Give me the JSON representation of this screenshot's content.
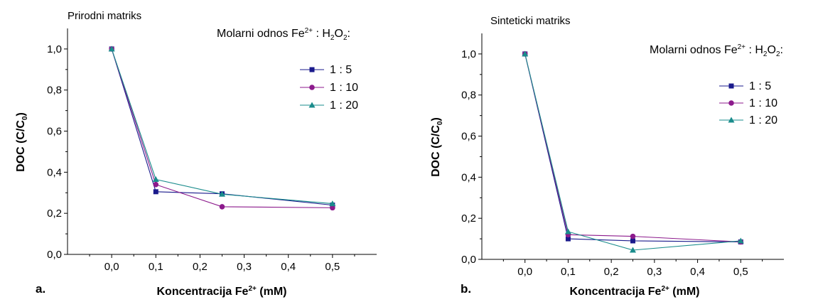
{
  "colors": {
    "1:5": "#1a1a8c",
    "1:10": "#8c1a8c",
    "1:20": "#1a8c8c"
  },
  "chart_data": [
    {
      "type": "line",
      "panel_letter": "a.",
      "title": "Prirodni matriks",
      "legend_title_parts": [
        "Molarni odnos Fe",
        "2+",
        " : H",
        "2",
        "O",
        "2",
        ":"
      ],
      "xlabel_parts": [
        "Koncentracija Fe",
        "2+",
        " (mM)"
      ],
      "ylabel_parts": [
        "DOC (C/C",
        "0",
        ")"
      ],
      "x": [
        0.0,
        0.1,
        0.25,
        0.5
      ],
      "xlim": [
        -0.1,
        0.6
      ],
      "ylim": [
        0.0,
        1.1
      ],
      "xticks": [
        0.0,
        0.1,
        0.2,
        0.3,
        0.4,
        0.5
      ],
      "xtick_labels": [
        "0,0",
        "0,1",
        "0,2",
        "0,3",
        "0,4",
        "0,5"
      ],
      "yticks": [
        0.0,
        0.2,
        0.4,
        0.6,
        0.8,
        1.0
      ],
      "ytick_labels": [
        "0,0",
        "0,2",
        "0,4",
        "0,6",
        "0,8",
        "1,0"
      ],
      "legend_position": "top-right",
      "grid": false,
      "series": [
        {
          "name": "1 : 5",
          "marker": "square",
          "color_key": "1:5",
          "values": [
            1.0,
            0.305,
            0.295,
            0.24
          ]
        },
        {
          "name": "1 : 10",
          "marker": "circle",
          "color_key": "1:10",
          "values": [
            1.0,
            0.34,
            0.232,
            0.227
          ]
        },
        {
          "name": "1 : 20",
          "marker": "triangle",
          "color_key": "1:20",
          "values": [
            1.0,
            0.365,
            0.293,
            0.247
          ]
        }
      ]
    },
    {
      "type": "line",
      "panel_letter": "b.",
      "title": "Sinteticki matriks",
      "legend_title_parts": [
        "Molarni odnos Fe",
        "2+",
        " : H",
        "2",
        "O",
        "2",
        ":"
      ],
      "xlabel_parts": [
        "Koncentracija Fe",
        "2+",
        " (mM)"
      ],
      "ylabel_parts": [
        "DOC (C/C",
        "0",
        ")"
      ],
      "x": [
        0.0,
        0.1,
        0.25,
        0.5
      ],
      "xlim": [
        -0.1,
        0.6
      ],
      "ylim": [
        0.0,
        1.1
      ],
      "xticks": [
        0.0,
        0.1,
        0.2,
        0.3,
        0.4,
        0.5
      ],
      "xtick_labels": [
        "0,0",
        "0,1",
        "0,2",
        "0,3",
        "0,4",
        "0,5"
      ],
      "yticks": [
        0.0,
        0.2,
        0.4,
        0.6,
        0.8,
        1.0
      ],
      "ytick_labels": [
        "0,0",
        "0,2",
        "0,4",
        "0,6",
        "0,8",
        "1,0"
      ],
      "legend_position": "top-right",
      "grid": false,
      "series": [
        {
          "name": "1 : 5",
          "marker": "square",
          "color_key": "1:5",
          "values": [
            1.0,
            0.1,
            0.09,
            0.085
          ]
        },
        {
          "name": "1 : 10",
          "marker": "circle",
          "color_key": "1:10",
          "values": [
            1.0,
            0.12,
            0.112,
            0.085
          ]
        },
        {
          "name": "1 : 20",
          "marker": "triangle",
          "color_key": "1:20",
          "values": [
            1.0,
            0.135,
            0.045,
            0.09
          ]
        }
      ]
    }
  ]
}
